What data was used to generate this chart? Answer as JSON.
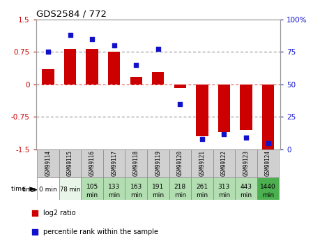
{
  "title": "GDS2584 / 772",
  "samples": [
    "GSM99114",
    "GSM99115",
    "GSM99116",
    "GSM99117",
    "GSM99118",
    "GSM99119",
    "GSM99120",
    "GSM99121",
    "GSM99122",
    "GSM99123",
    "GSM99124"
  ],
  "log2_ratio": [
    0.35,
    0.82,
    0.82,
    0.75,
    0.18,
    0.28,
    -0.08,
    -1.2,
    -1.1,
    -1.05,
    -1.5
  ],
  "percentile_rank": [
    75,
    88,
    85,
    80,
    65,
    77,
    35,
    8,
    12,
    9,
    5
  ],
  "time_labels_line1": [
    "0 min",
    "78 min",
    "105",
    "133",
    "163",
    "191",
    "218",
    "261",
    "313",
    "443",
    "1440"
  ],
  "time_labels_line2": [
    "",
    "",
    "min",
    "min",
    "min",
    "min",
    "min",
    "min",
    "min",
    "min",
    "min"
  ],
  "time_bg_colors": [
    "#ffffff",
    "#e8f5e8",
    "#b2deb2",
    "#b2deb2",
    "#b2deb2",
    "#b2deb2",
    "#b2deb2",
    "#b2deb2",
    "#b2deb2",
    "#b2deb2",
    "#4caf50"
  ],
  "bar_color": "#cc0000",
  "dot_color": "#1111cc",
  "ylim_left": [
    -1.5,
    1.5
  ],
  "ylim_right": [
    0,
    100
  ],
  "yticks_left": [
    -1.5,
    -0.75,
    0,
    0.75,
    1.5
  ],
  "yticks_right": [
    0,
    25,
    50,
    75,
    100
  ],
  "plot_bg": "#ffffff",
  "legend_labels": [
    "log2 ratio",
    "percentile rank within the sample"
  ],
  "legend_colors": [
    "#cc0000",
    "#1111cc"
  ],
  "gsm_bg": "#d0d0d0",
  "cell_border": "#888888"
}
